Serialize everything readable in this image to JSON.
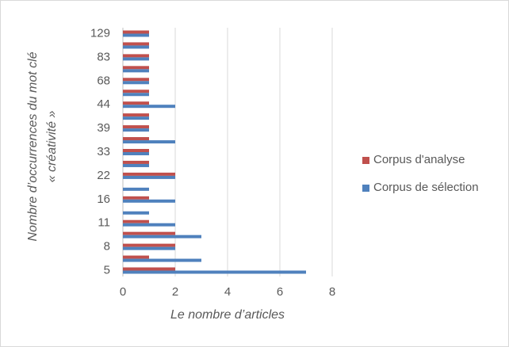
{
  "chart_data": {
    "type": "hbar",
    "x_label": "Le nombre d’articles",
    "y_label": [
      "Nombre d’occurrences du mot clé",
      "« créativité »"
    ],
    "categories": [
      "5",
      null,
      "8",
      null,
      "11",
      null,
      "16",
      null,
      "22",
      null,
      "33",
      null,
      "39",
      null,
      "44",
      null,
      "68",
      null,
      "83",
      null,
      "129"
    ],
    "series": [
      {
        "name": "Corpus d'analyse",
        "color": "#c0504d",
        "values": [
          2,
          1,
          2,
          2,
          1,
          0,
          1,
          0,
          2,
          1,
          1,
          1,
          1,
          1,
          1,
          1,
          1,
          1,
          1,
          1,
          1
        ]
      },
      {
        "name": "Corpus de sélection",
        "color": "#4f81bd",
        "values": [
          7,
          3,
          2,
          3,
          2,
          1,
          2,
          1,
          2,
          1,
          1,
          2,
          1,
          1,
          2,
          1,
          1,
          1,
          1,
          1,
          1
        ]
      }
    ],
    "xlim": [
      0,
      8
    ],
    "xticks": [
      0,
      2,
      4,
      6,
      8
    ],
    "grid": true,
    "legend": "right"
  }
}
